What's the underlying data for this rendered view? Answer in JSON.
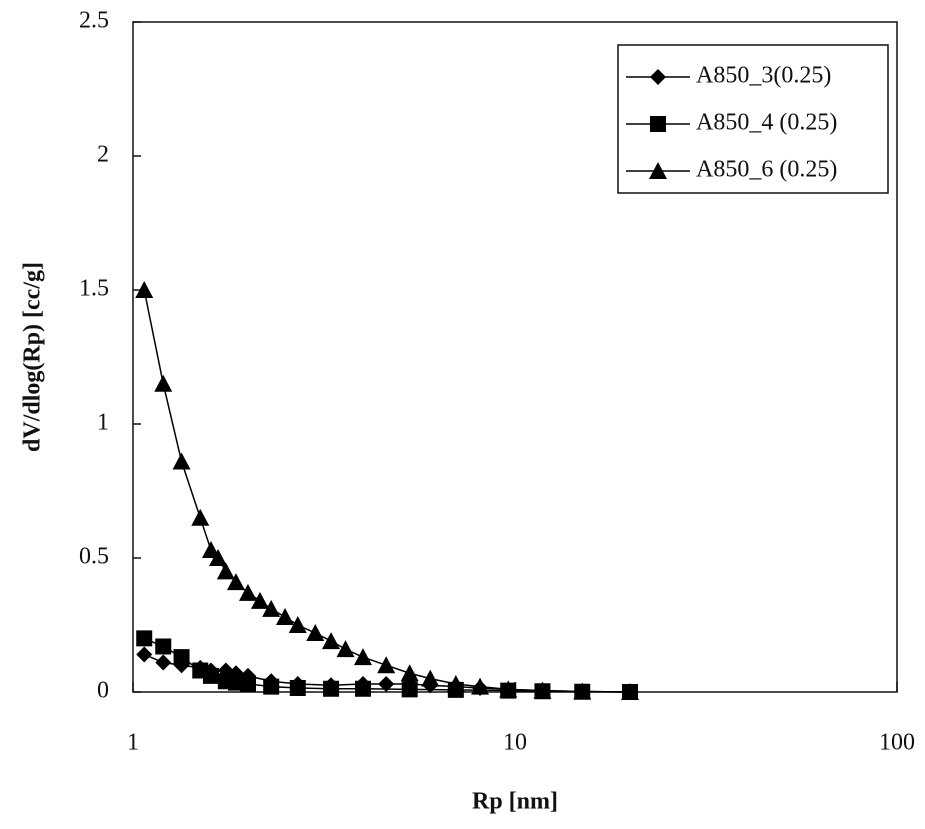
{
  "chart_data": {
    "type": "line",
    "xlabel": "Rp [nm]",
    "ylabel": "dV/dlog(Rp) [cc/g]",
    "xscale": "log",
    "xlim": [
      1,
      100
    ],
    "xticks": [
      1,
      10,
      100
    ],
    "ylim": [
      0,
      2.5
    ],
    "yticks": [
      0,
      0.5,
      1,
      1.5,
      2,
      2.5
    ],
    "legend": "upper right",
    "series": [
      {
        "name": "A850_3(0.25)",
        "color": "#000000",
        "marker": "diamond",
        "x": [
          1.07,
          1.2,
          1.34,
          1.5,
          1.6,
          1.75,
          1.86,
          2.0,
          2.3,
          2.7,
          3.3,
          4.0,
          4.6,
          5.3,
          6.0,
          7.0,
          8.1,
          9.6,
          11.8,
          15,
          20
        ],
        "values": [
          0.14,
          0.11,
          0.1,
          0.09,
          0.08,
          0.08,
          0.07,
          0.06,
          0.04,
          0.03,
          0.025,
          0.03,
          0.03,
          0.03,
          0.025,
          0.02,
          0.015,
          0.01,
          0.005,
          0.002,
          0
        ]
      },
      {
        "name": "A850_4 (0.25)",
        "color": "#000000",
        "marker": "square",
        "x": [
          1.07,
          1.2,
          1.34,
          1.5,
          1.6,
          1.75,
          1.86,
          2.0,
          2.3,
          2.7,
          3.3,
          4.0,
          5.3,
          7.0,
          9.6,
          11.8,
          15,
          20
        ],
        "values": [
          0.2,
          0.17,
          0.13,
          0.08,
          0.06,
          0.04,
          0.035,
          0.03,
          0.02,
          0.015,
          0.012,
          0.012,
          0.01,
          0.008,
          0.005,
          0.003,
          0.001,
          0
        ]
      },
      {
        "name": "A850_6 (0.25)",
        "color": "#000000",
        "marker": "triangle",
        "x": [
          1.07,
          1.2,
          1.34,
          1.5,
          1.6,
          1.67,
          1.75,
          1.86,
          2.0,
          2.15,
          2.3,
          2.5,
          2.7,
          3.0,
          3.3,
          3.6,
          4.0,
          4.6,
          5.3,
          6.0,
          7.0,
          8.1,
          9.6,
          11.8,
          15,
          20
        ],
        "values": [
          1.5,
          1.15,
          0.86,
          0.65,
          0.53,
          0.5,
          0.45,
          0.41,
          0.37,
          0.34,
          0.31,
          0.28,
          0.25,
          0.22,
          0.19,
          0.16,
          0.13,
          0.1,
          0.07,
          0.05,
          0.03,
          0.02,
          0.01,
          0.005,
          0.002,
          0
        ]
      }
    ]
  }
}
